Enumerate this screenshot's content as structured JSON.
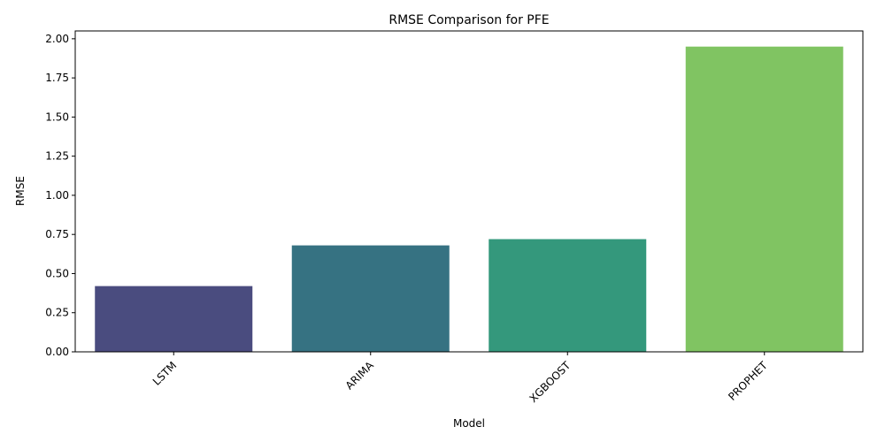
{
  "chart_data": {
    "type": "bar",
    "title": "RMSE Comparison for PFE",
    "xlabel": "Model",
    "ylabel": "RMSE",
    "categories": [
      "LSTM",
      "ARIMA",
      "XGBOOST",
      "PROPHET"
    ],
    "values": [
      0.42,
      0.68,
      0.72,
      1.95
    ],
    "colors": [
      "#4a4c7f",
      "#367282",
      "#34987c",
      "#80c462"
    ],
    "ylim": [
      0,
      2.05
    ],
    "yticks": [
      "0.00",
      "0.25",
      "0.50",
      "0.75",
      "1.00",
      "1.25",
      "1.50",
      "1.75",
      "2.00"
    ],
    "grid": false,
    "legend": "none"
  }
}
